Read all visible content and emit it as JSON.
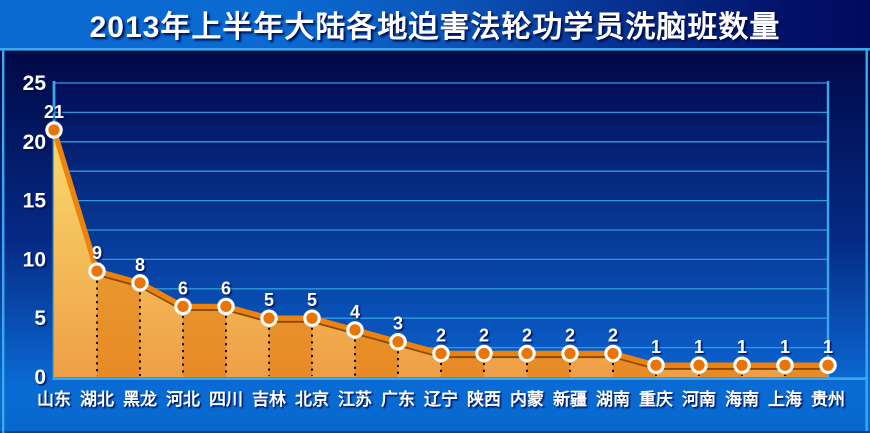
{
  "chart_data": {
    "type": "area",
    "title": "2013年上半年大陆各地迫害法轮功学员洗脑班数量",
    "categories": [
      "山东",
      "湖北",
      "黑龙",
      "河北",
      "四川",
      "吉林",
      "北京",
      "江苏",
      "广东",
      "辽宁",
      "陕西",
      "内蒙",
      "新疆",
      "湖南",
      "重庆",
      "河南",
      "海南",
      "上海",
      "贵州"
    ],
    "values": [
      21,
      9,
      8,
      6,
      6,
      5,
      5,
      4,
      3,
      2,
      2,
      2,
      2,
      2,
      1,
      1,
      1,
      1,
      1
    ],
    "xlabel": "",
    "ylabel": "",
    "ylim": [
      0,
      25
    ],
    "y_tick_labels": [
      "0",
      "5",
      "10",
      "15",
      "20",
      "25"
    ],
    "y_tick_step": 5,
    "gridline_step": 2.5,
    "grid": "on",
    "legend": "none",
    "value_labels_shown": true
  },
  "colors": {
    "title_text": "#ffffff",
    "panel_bg_top": "#010845",
    "panel_bg_bottom": "#0a6bd4",
    "plot_bg_top": "#030d58",
    "plot_bg_bottom": "#0a62cf",
    "grid_line": "#2e9bdd",
    "axis_border": "#3aa9ec",
    "area_top": "#f8db6c",
    "area_mid": "#f4bd5a",
    "area_bottom": "#ef9f46",
    "band_overlay": "rgba(223,118,6,0.5)",
    "series_line": "#ed830d",
    "series_line_shadow": "#8a4a06",
    "marker_fill": "#e97508",
    "marker_ring": "#ffffff",
    "divider_dots": "#140e06",
    "tick_text": "#ffffff"
  }
}
